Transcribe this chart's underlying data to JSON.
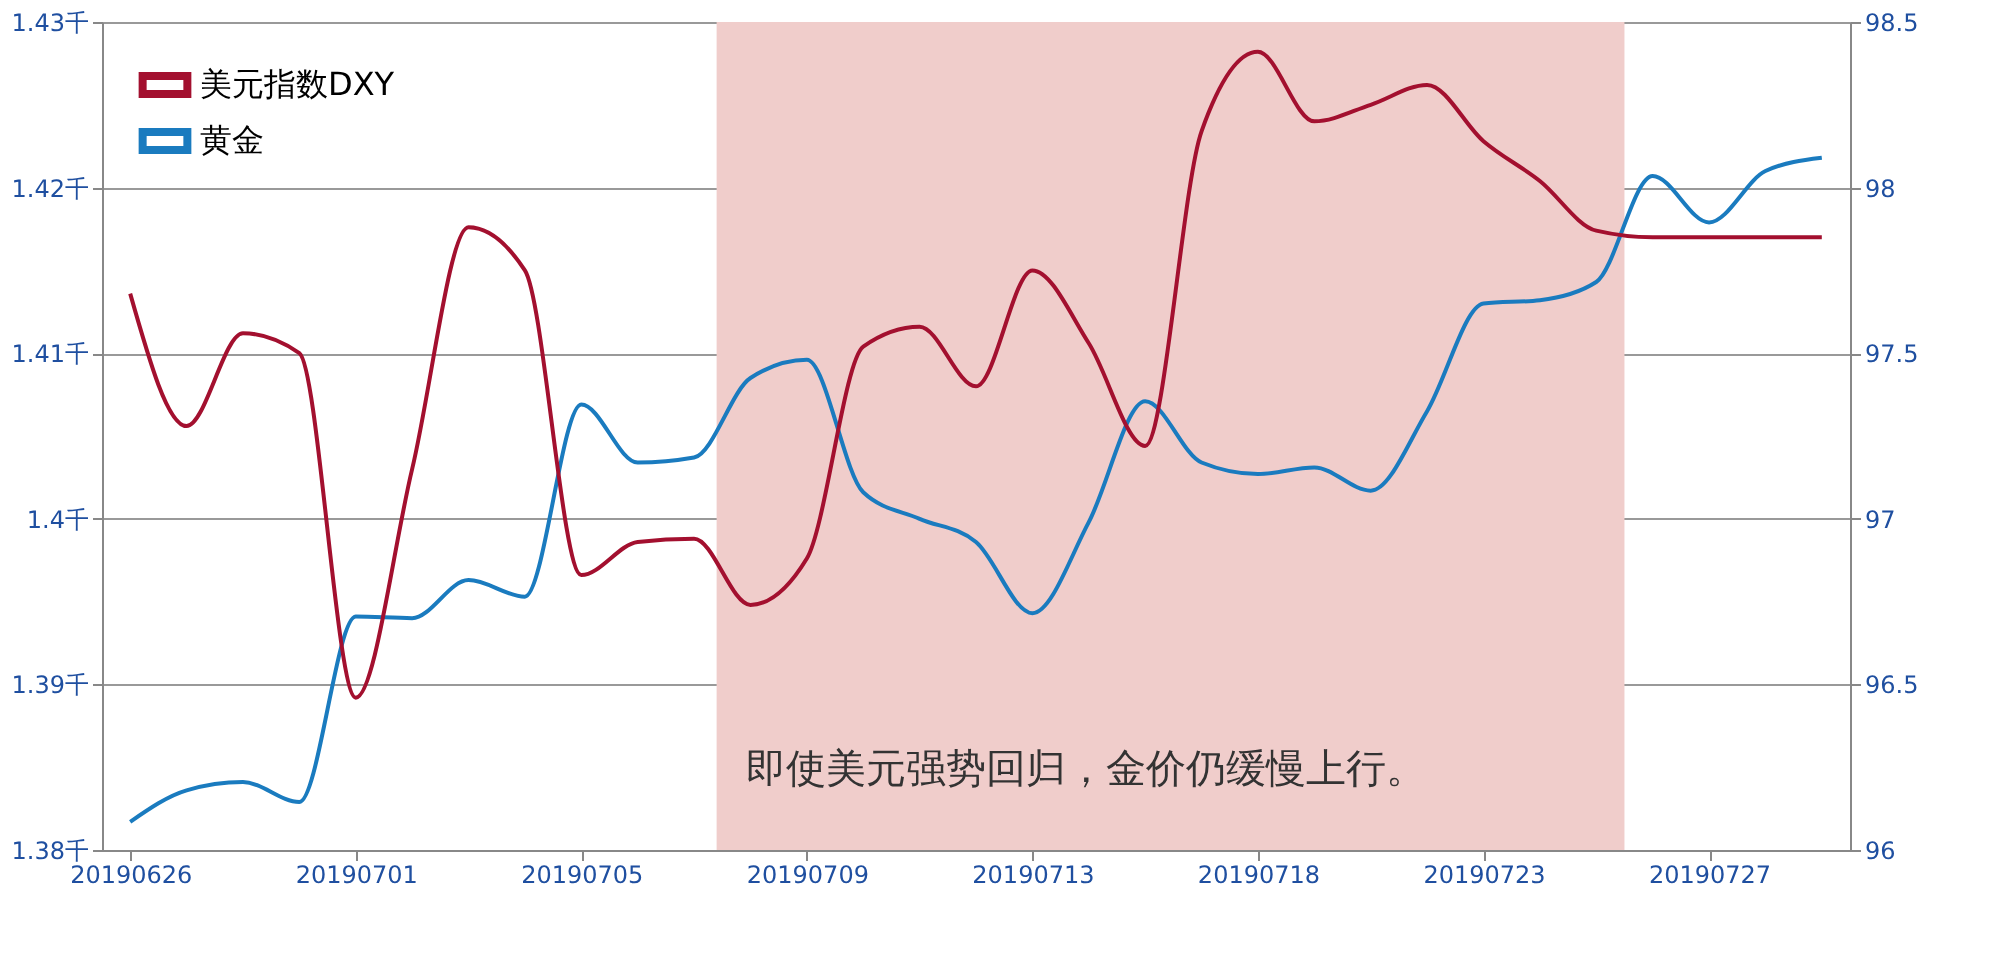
{
  "chart_data": {
    "type": "line",
    "categories": [
      "20190626",
      null,
      null,
      null,
      "20190701",
      null,
      null,
      null,
      "20190705",
      null,
      null,
      null,
      "20190709",
      null,
      null,
      null,
      "20190713",
      null,
      null,
      null,
      "20190718",
      null,
      null,
      null,
      "20190723",
      null,
      null,
      null,
      "20190727",
      null,
      null
    ],
    "series": [
      {
        "name": "美元指数DXY",
        "color": "#a3102f",
        "axis": "y2",
        "values": [
          97.68,
          97.28,
          97.56,
          97.5,
          96.46,
          97.15,
          97.88,
          97.75,
          96.83,
          96.93,
          96.94,
          96.74,
          96.88,
          97.52,
          97.58,
          97.4,
          97.75,
          97.53,
          97.22,
          98.17,
          98.41,
          98.2,
          98.25,
          98.31,
          98.14,
          98.02,
          97.87,
          97.85,
          97.85,
          97.85,
          97.85
        ]
      },
      {
        "name": "黄金",
        "color": "#1a7bbf",
        "values": [
          1.3817,
          1.3836,
          1.3841,
          1.3829,
          1.3941,
          1.394,
          1.3963,
          1.3953,
          1.4069,
          1.4034,
          1.4037,
          1.4085,
          1.4096,
          1.4016,
          1.4,
          1.3986,
          1.3943,
          1.3998,
          1.4071,
          1.4034,
          1.4027,
          1.4031,
          1.4017,
          1.4065,
          1.413,
          1.4132,
          1.4143,
          1.4207,
          1.4179,
          1.421,
          1.4218
        ]
      }
    ],
    "ylim": [
      1.38,
      1.43
    ],
    "yticks": [
      {
        "value": 1.38,
        "label": "1.38千"
      },
      {
        "value": 1.39,
        "label": "1.39千"
      },
      {
        "value": 1.4,
        "label": "1.4千"
      },
      {
        "value": 1.41,
        "label": "1.41千"
      },
      {
        "value": 1.42,
        "label": "1.42千"
      },
      {
        "value": 1.43,
        "label": "1.43千"
      }
    ],
    "y2lim": [
      96,
      98.5
    ],
    "y2ticks": [
      96,
      96.5,
      97,
      97.5,
      98,
      98.5
    ],
    "annotations": [
      "即使美元强势回归，金价仍缓慢上行。"
    ],
    "grid": "y",
    "legend": "top left"
  }
}
